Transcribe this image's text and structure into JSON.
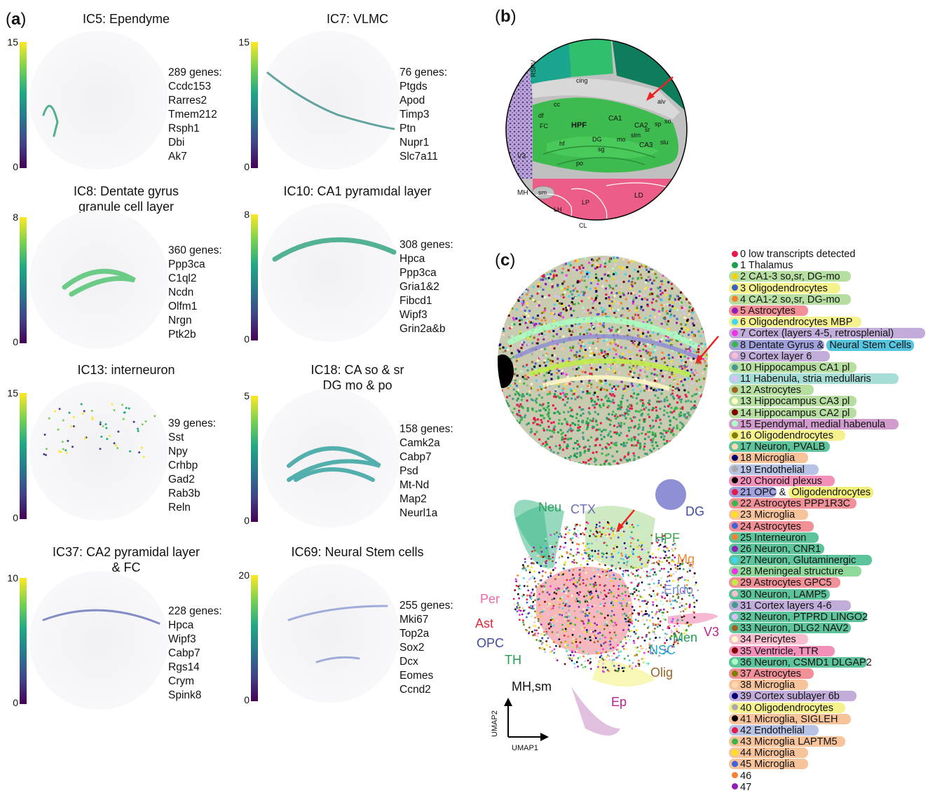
{
  "panel_a": {
    "letter": "a",
    "ics": [
      {
        "title": "IC5: Ependyme",
        "title2": "",
        "cbar_max": "15",
        "cbar_min": "0",
        "count": "289 genes:",
        "genes": [
          "Ccdc153",
          "Rarres2",
          "Tmem212",
          "Rsph1",
          "Dbi",
          "Ak7"
        ]
      },
      {
        "title": "IC7: VLMC",
        "title2": "",
        "cbar_max": "15",
        "cbar_min": "0",
        "count": "76 genes:",
        "genes": [
          "Ptgds",
          "Apod",
          "Timp3",
          "Ptn",
          "Nupr1",
          "Slc7a11"
        ]
      },
      {
        "title": "IC8: Dentate gyrus",
        "title2": "granule cell layer",
        "cbar_max": "8",
        "cbar_min": "0",
        "count": "360 genes:",
        "genes": [
          "Ppp3ca",
          "C1ql2",
          "Ncdn",
          "Olfm1",
          "Nrgn",
          "Ptk2b"
        ]
      },
      {
        "title": "IC10: CA1 pyramıdal layer",
        "title2": "",
        "cbar_max": "8",
        "cbar_min": "0",
        "count": "308 genes:",
        "genes": [
          "Hpca",
          "Ppp3ca",
          "Gria1&2",
          "Fibcd1",
          "Wipf3",
          "Grin2a&b"
        ]
      },
      {
        "title": "IC13: interneuron",
        "title2": "",
        "cbar_max": "15",
        "cbar_min": "0",
        "count": "39 genes:",
        "genes": [
          "Sst",
          "Npy",
          "Crhbp",
          "Gad2",
          "Rab3b",
          "Reln"
        ]
      },
      {
        "title": "IC18: CA so & sr",
        "title2": "DG mo & po",
        "cbar_max": "5",
        "cbar_min": "0",
        "count": "158 genes:",
        "genes": [
          "Camk2a",
          "Cabp7",
          "Psd",
          "Mt-Nd",
          "Map2",
          "Neurl1a"
        ]
      },
      {
        "title": "IC37: CA2 pyramidal layer",
        "title2": "& FC",
        "cbar_max": "10",
        "cbar_min": "0",
        "count": "228 genes:",
        "genes": [
          "Hpca",
          "Wipf3",
          "Cabp7",
          "Rgs14",
          "Crym",
          "Spink8"
        ]
      },
      {
        "title": "IC69: Neural Stem cells",
        "title2": "",
        "cbar_max": "20",
        "cbar_min": "0",
        "count": "255 genes:",
        "genes": [
          "Mki67",
          "Top2a",
          "Sox2",
          "Dcx",
          "Eomes",
          "Ccnd2"
        ]
      }
    ]
  },
  "panel_b": {
    "letter": "b",
    "labels": [
      "RSPV",
      "cing",
      "cc",
      "alv",
      "df",
      "FC",
      "HPF",
      "CA1",
      "CA2",
      "CA3",
      "sp",
      "so",
      "slu",
      "sr",
      "slm",
      "mo",
      "DG",
      "sg",
      "po",
      "hf",
      "V3",
      "MH",
      "sm",
      "LH",
      "LP",
      "LD",
      "CL"
    ]
  },
  "panel_c": {
    "letter": "c",
    "umap_labels": [
      "Neu",
      "CTX",
      "DG",
      "HPF",
      "Mg",
      "Endo",
      "Per",
      "Ast",
      "OPC",
      "TH",
      "Men",
      "V3",
      "NSC",
      "Olig",
      "MH,sm",
      "Ep"
    ],
    "axis_x": "UMAP1",
    "axis_y": "UMAP2"
  },
  "legend": [
    {
      "text": "0 low transcripts detected",
      "dot": "#e6194b",
      "hl": ""
    },
    {
      "text": "1 Thalamus",
      "dot": "#1e9e4e",
      "hl": ""
    },
    {
      "text": "2 CA1-3 so,sr, DG-mo",
      "dot": "#f5d10c",
      "hl": "#a8d88f"
    },
    {
      "text": "3 Oligodendrocytes",
      "dot": "#3b5fc0",
      "hl": "#f3f07a"
    },
    {
      "text": "4 CA1-2 so,sr, DG-mo",
      "dot": "#f58231",
      "hl": "#a8d88f"
    },
    {
      "text": "5 Astrocytes",
      "dot": "#911eb4",
      "hl": "#f07d86"
    },
    {
      "text": "6 Oligodendrocytes MBP",
      "dot": "#42d4f4",
      "hl": "#f3f07a"
    },
    {
      "text": "7 Cortex (layers 4-5, retrosplenial)",
      "dot": "#f032e6",
      "hl": "#b79fd3"
    },
    {
      "text": "8 Dentate Gyrus",
      "dot": "#3cb44b",
      "hl": "#8f8fd6",
      "extra": "Neural Stem Cells",
      "extra_hl": "#56c5e0",
      "joiner": "&"
    },
    {
      "text": "9 Cortex layer 6",
      "dot": "#fabed4",
      "hl": "#b79fd3"
    },
    {
      "text": "10 Hippocampus CA1 pl",
      "dot": "#469990",
      "hl": "#a8d88f"
    },
    {
      "text": "11 Habenula, stria medullaris",
      "dot": "#dcbeff",
      "hl": "#97d7cf"
    },
    {
      "text": "12 Astrocytes",
      "dot": "#9a6324",
      "hl": "#a8d88f"
    },
    {
      "text": "13 Hippocampus CA3 pl",
      "dot": "#fffac8",
      "hl": "#a8d88f"
    },
    {
      "text": "14 Hippocampus CA2 pl",
      "dot": "#800000",
      "hl": "#a8d88f"
    },
    {
      "text": "15 Ependymal, medial habenula",
      "dot": "#aaffc3",
      "hl": "#c98ac4"
    },
    {
      "text": "16 Oligodendrocytes",
      "dot": "#808000",
      "hl": "#f3f07a"
    },
    {
      "text": "17 Neuron, PVALB",
      "dot": "#ffd8b1",
      "hl": "#3fb98a"
    },
    {
      "text": "18 Microglia",
      "dot": "#000075",
      "hl": "#f6b889"
    },
    {
      "text": "19 Endothelial",
      "dot": "#a9a9a9",
      "hl": "#a9b9e0"
    },
    {
      "text": "20 Choroid plexus",
      "dot": "#000000",
      "hl": "#f07dae"
    },
    {
      "text": "21 OPC",
      "dot": "#e6194b",
      "hl": "#8f8fd6",
      "extra": "Oligodendrocytes",
      "extra_hl": "#f3f07a",
      "joiner": "&"
    },
    {
      "text": "22 Astrocytes PPP1R3C",
      "dot": "#3cb44b",
      "hl": "#f07d86"
    },
    {
      "text": "23 Microglia",
      "dot": "#ffe119",
      "hl": "#f6b889"
    },
    {
      "text": "24 Astrocytes",
      "dot": "#4363d8",
      "hl": "#f07d86"
    },
    {
      "text": "25 Interneuron",
      "dot": "#f58231",
      "hl": "#3fb98a"
    },
    {
      "text": "26 Neuron, CNR1",
      "dot": "#911eb4",
      "hl": "#3fb98a"
    },
    {
      "text": "27 Neuron, Glutaminergic",
      "dot": "#42d4f4",
      "hl": "#3fb98a"
    },
    {
      "text": "28 Meningeal structure",
      "dot": "#f032e6",
      "hl": "#7bd48a"
    },
    {
      "text": "29 Astrocytes GPC5",
      "dot": "#bfef45",
      "hl": "#f07d86"
    },
    {
      "text": "30 Neuron, LAMP5",
      "dot": "#fabed4",
      "hl": "#3fb98a"
    },
    {
      "text": "31 Cortex layers 4-6",
      "dot": "#469990",
      "hl": "#b79fd3"
    },
    {
      "text": "32 Neuron, PTPRD LINGO2",
      "dot": "#dcbeff",
      "hl": "#3fb98a"
    },
    {
      "text": "33 Neuron, DLG2 NAV2",
      "dot": "#9a6324",
      "hl": "#3fb98a"
    },
    {
      "text": "34 Pericytes",
      "dot": "#fffac8",
      "hl": "#f6b3c8"
    },
    {
      "text": "35 Ventricle, TTR",
      "dot": "#800000",
      "hl": "#f07dae"
    },
    {
      "text": "36 Neuron, CSMD1 DLGAP2",
      "dot": "#aaffc3",
      "hl": "#3fb98a"
    },
    {
      "text": "37 Astrocytes",
      "dot": "#808000",
      "hl": "#f07d86"
    },
    {
      "text": "38 Microglia",
      "dot": "#ffd8b1",
      "hl": "#f6b889"
    },
    {
      "text": "39 Cortex sublayer 6b",
      "dot": "#000075",
      "hl": "#b79fd3"
    },
    {
      "text": "40 Oligodendrocytes",
      "dot": "#a9a9a9",
      "hl": "#f3f07a"
    },
    {
      "text": "41 Microglia, SIGLEH",
      "dot": "#000000",
      "hl": "#f6b889"
    },
    {
      "text": "42 Endothelial",
      "dot": "#e6194b",
      "hl": "#a9b9e0"
    },
    {
      "text": "43 Microglia LAPTM5",
      "dot": "#3cb44b",
      "hl": "#f6b889"
    },
    {
      "text": "44 Microglia",
      "dot": "#ffe119",
      "hl": "#f6b889"
    },
    {
      "text": "45 Microglia",
      "dot": "#4363d8",
      "hl": "#f6b889"
    },
    {
      "text": "46",
      "dot": "#f58231",
      "hl": ""
    },
    {
      "text": "47",
      "dot": "#911eb4",
      "hl": ""
    }
  ]
}
